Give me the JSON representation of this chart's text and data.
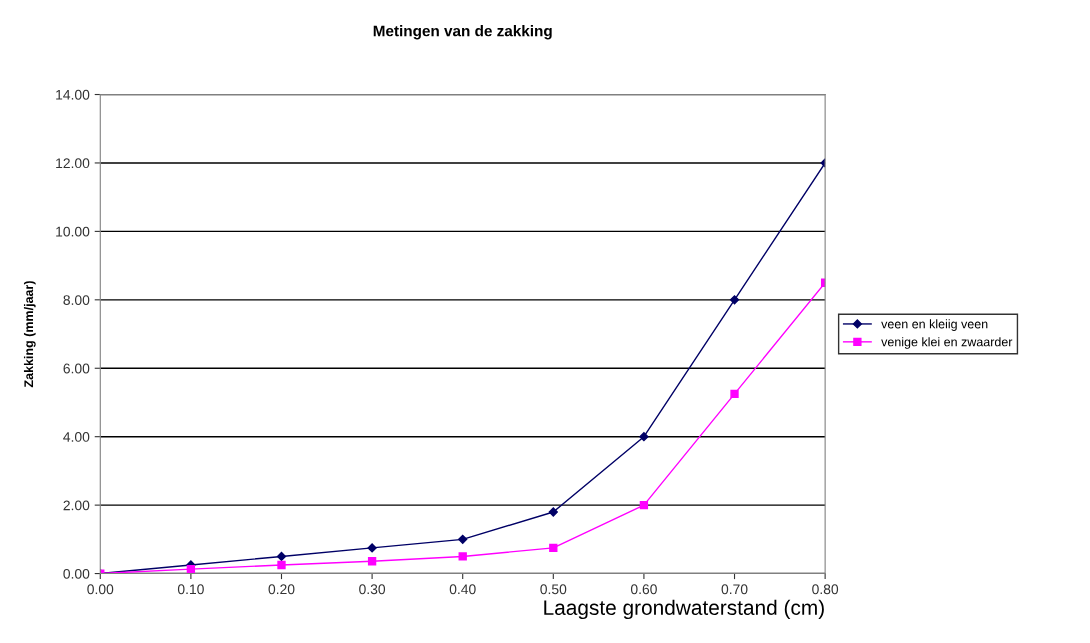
{
  "chart_data": {
    "type": "line",
    "title": "Metingen van de zakking",
    "xlabel": "Laagste grondwaterstand (cm)",
    "ylabel": "Zakking (mm/jaar)",
    "x": [
      0,
      0.1,
      0.2,
      0.3,
      0.4,
      0.5,
      0.6,
      0.7,
      0.8
    ],
    "series": [
      {
        "name": "veen en kleiig veen",
        "color": "#000066",
        "marker": "diamond",
        "values": [
          0,
          0.25,
          0.5,
          0.75,
          1.0,
          1.8,
          4.0,
          8.0,
          12.0
        ]
      },
      {
        "name": "venige klei en zwaarder",
        "color": "#ff00ff",
        "marker": "square",
        "values": [
          0,
          0.13,
          0.25,
          0.36,
          0.5,
          0.75,
          2.0,
          5.25,
          8.5
        ]
      }
    ],
    "xlim": [
      0,
      0.8
    ],
    "xticks": [
      {
        "value": 0,
        "label": "0.00"
      },
      {
        "value": 0.1,
        "label": "0.10"
      },
      {
        "value": 0.2,
        "label": "0.20"
      },
      {
        "value": 0.3,
        "label": "0.30"
      },
      {
        "value": 0.4,
        "label": "0.40"
      },
      {
        "value": 0.5,
        "label": "0.50"
      },
      {
        "value": 0.6,
        "label": "0.60"
      },
      {
        "value": 0.7,
        "label": "0.70"
      },
      {
        "value": 0.8,
        "label": "0.80"
      }
    ],
    "ylim": [
      0,
      14
    ],
    "yticks": [
      {
        "value": 0,
        "label": "0.00"
      },
      {
        "value": 2,
        "label": "2.00"
      },
      {
        "value": 4,
        "label": "4.00"
      },
      {
        "value": 6,
        "label": "6.00"
      },
      {
        "value": 8,
        "label": "8.00"
      },
      {
        "value": 10,
        "label": "10.00"
      },
      {
        "value": 12,
        "label": "12.00"
      },
      {
        "value": 14,
        "label": "14.00"
      }
    ],
    "grid": "y",
    "legend": "right",
    "line_style": "solid"
  }
}
